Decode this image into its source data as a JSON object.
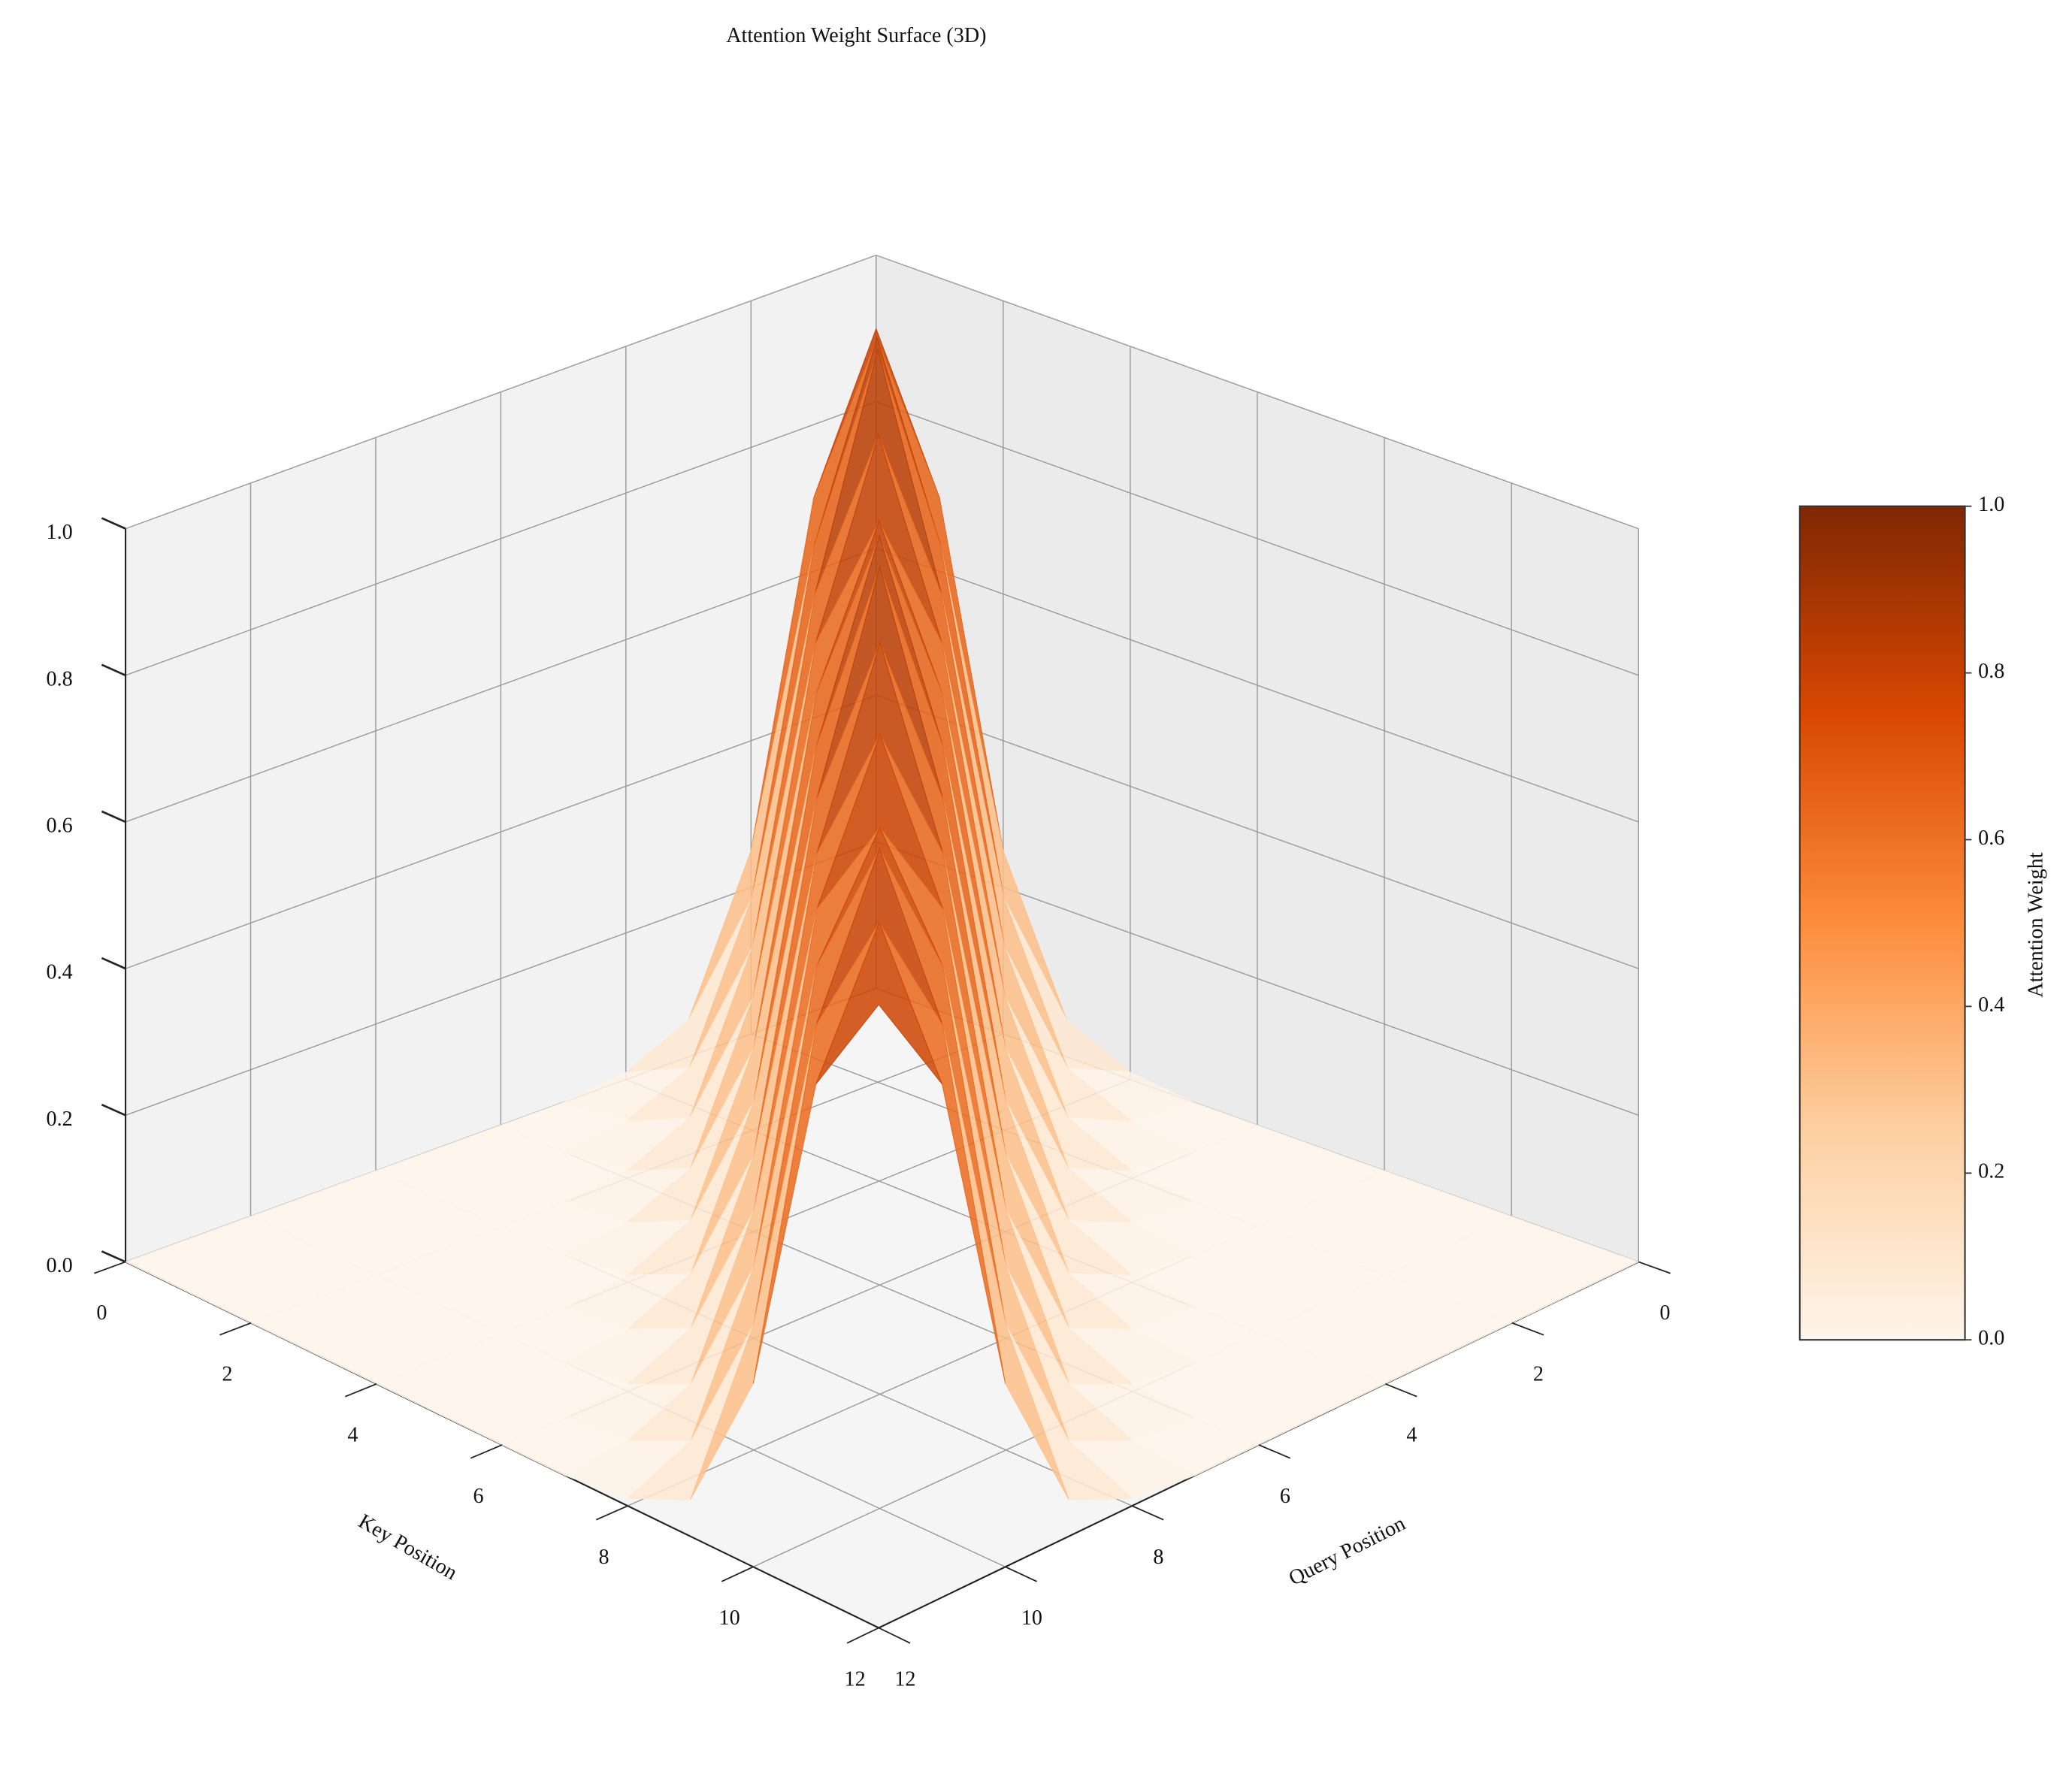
{
  "chart_data": {
    "type": "surface",
    "title": "Attention Weight Surface (3D)",
    "xlabel": "Query Position",
    "ylabel": "Key Position",
    "colorbar_label": "Attention Weight",
    "x": [
      0,
      1,
      2,
      3,
      4,
      5,
      6,
      7,
      8,
      9,
      10,
      11,
      12
    ],
    "y": [
      0,
      1,
      2,
      3,
      4,
      5,
      6,
      7,
      8,
      9,
      10,
      11,
      12
    ],
    "z": [
      [
        0.9,
        0.7,
        0.25,
        0.05,
        0.01,
        0,
        0,
        0,
        0,
        0,
        0,
        0,
        0
      ],
      [
        0.7,
        0.95,
        0.7,
        0.25,
        0.05,
        0.01,
        0,
        0,
        0,
        0,
        0,
        0,
        0
      ],
      [
        0.25,
        0.7,
        1.0,
        0.7,
        0.25,
        0.05,
        0.01,
        0,
        0,
        0,
        0,
        0,
        0
      ],
      [
        0.05,
        0.25,
        0.7,
        0.95,
        0.7,
        0.25,
        0.05,
        0.01,
        0,
        0,
        0,
        0,
        0
      ],
      [
        0.01,
        0.05,
        0.25,
        0.7,
        0.9,
        0.7,
        0.25,
        0.05,
        0.01,
        0,
        0,
        0,
        0
      ],
      [
        0,
        0.01,
        0.05,
        0.25,
        0.7,
        0.95,
        0.7,
        0.25,
        0.05,
        0.01,
        0,
        0,
        0
      ],
      [
        0,
        0,
        0.01,
        0.05,
        0.25,
        0.7,
        0.98,
        0.7,
        0.25,
        0.05,
        0.01,
        0,
        0
      ],
      [
        0,
        0,
        0,
        0.01,
        0.05,
        0.25,
        0.7,
        0.95,
        0.7,
        0.25,
        0.05,
        0.01,
        0
      ],
      [
        0,
        0,
        0,
        0,
        0.01,
        0.05,
        0.25,
        0.7,
        0.9,
        0.7,
        0.25,
        0.05,
        0.01
      ],
      [
        0,
        0,
        0,
        0,
        0,
        0.01,
        0.05,
        0.25,
        0.7,
        0.85,
        0.7,
        0.25,
        0.05
      ],
      [
        0,
        0,
        0,
        0,
        0,
        0,
        0.01,
        0.05,
        0.25,
        0.7,
        0.9,
        0.7,
        0.25
      ],
      [
        0,
        0,
        0,
        0,
        0,
        0,
        0,
        0.01,
        0.05,
        0.25,
        0.7,
        0.88,
        0.7
      ],
      [
        0,
        0,
        0,
        0,
        0,
        0,
        0,
        0,
        0.01,
        0.05,
        0.25,
        0.7,
        0.85
      ]
    ],
    "xlim": [
      0,
      12
    ],
    "ylim": [
      0,
      12
    ],
    "zlim": [
      0,
      1
    ],
    "xticks": [
      0,
      2,
      4,
      6,
      8,
      10,
      12
    ],
    "yticks": [
      0,
      2,
      4,
      6,
      8,
      10,
      12
    ],
    "zticks": [
      {
        "value": 0,
        "label": "0.0"
      },
      {
        "value": 0.2,
        "label": "0.2"
      },
      {
        "value": 0.4,
        "label": "0.4"
      },
      {
        "value": 0.6,
        "label": "0.6"
      },
      {
        "value": 0.8,
        "label": "0.8"
      },
      {
        "value": 1,
        "label": "1.0"
      }
    ],
    "colorbar_ticks": [
      {
        "value": 0,
        "label": "0.0"
      },
      {
        "value": 0.2,
        "label": "0.2"
      },
      {
        "value": 0.4,
        "label": "0.4"
      },
      {
        "value": 0.6,
        "label": "0.6"
      },
      {
        "value": 0.8,
        "label": "0.8"
      },
      {
        "value": 1,
        "label": "1.0"
      }
    ],
    "colormap": [
      "#fff5eb",
      "#fdd0a2",
      "#fd8d3c",
      "#d94801",
      "#7f2704"
    ],
    "grid": true
  }
}
